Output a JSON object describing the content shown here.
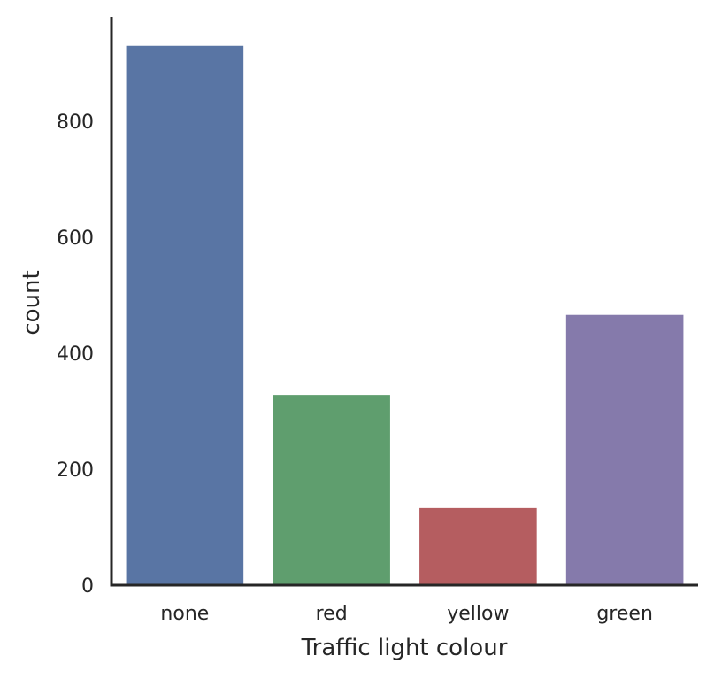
{
  "chart_data": {
    "type": "bar",
    "title": "",
    "xlabel": "Traffic light colour",
    "ylabel": "count",
    "categories": [
      "none",
      "red",
      "yellow",
      "green"
    ],
    "values": [
      930,
      328,
      133,
      466
    ],
    "colors": [
      "#5975a4",
      "#5f9e6e",
      "#b55d60",
      "#857aab"
    ],
    "ylim": [
      0,
      980
    ],
    "yticks": [
      0,
      200,
      400,
      600,
      800
    ],
    "grid": false,
    "legend": "none"
  }
}
